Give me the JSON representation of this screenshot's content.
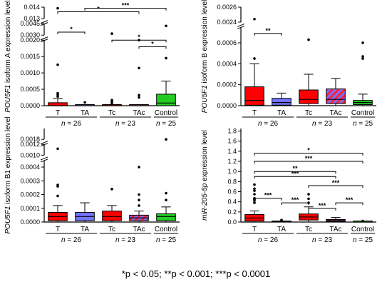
{
  "footnote": "*p < 0.05; **p < 0.001; ***p < 0.0001",
  "colors": {
    "T": "#ff0000",
    "TA": "#7373ff",
    "Tc": "#ff0000",
    "TAc_fill": "#ff1f3a",
    "TAc_stripe": "#7373ff",
    "Control": "#22cc22"
  },
  "chart_data": [
    {
      "type": "box",
      "ylabel_gene": "POU5F1",
      "ylabel_rest": " isoform A expression level",
      "y_segments": [
        {
          "range": [
            0,
            0.002
          ],
          "ticks": [
            "0.0000",
            "0.0005",
            "0.0010",
            "0.0015",
            "0.0020"
          ]
        },
        {
          "range": [
            0.003,
            0.0045
          ],
          "ticks": [
            "0.0030",
            "0.0045"
          ]
        },
        {
          "range": [
            0.013,
            0.014
          ],
          "ticks": [
            "0.013",
            "0.014"
          ]
        }
      ],
      "categories": [
        "T",
        "TA",
        "Tc",
        "TAc",
        "Control"
      ],
      "groups": [
        {
          "label": "n = 26",
          "categories": [
            "T",
            "TA"
          ]
        },
        {
          "label": "n = 23",
          "categories": [
            "Tc",
            "TAc"
          ]
        },
        {
          "label": "n = 25",
          "categories": [
            "Control"
          ]
        }
      ],
      "boxes": [
        {
          "name": "T",
          "whisker_low": 0,
          "q1": 0,
          "median": 0,
          "q3": 9e-05,
          "whisker_high": 0.00022,
          "outliers": [
            0.00028,
            0.00033,
            0.00038,
            0.00125,
            0.0139
          ]
        },
        {
          "name": "TA",
          "whisker_low": 0,
          "q1": 0,
          "median": 0,
          "q3": 0,
          "whisker_high": 0,
          "outliers": [
            0.0001
          ]
        },
        {
          "name": "Tc",
          "whisker_low": 0,
          "q1": 0,
          "median": 0,
          "q3": 0,
          "whisker_high": 0,
          "outliers": [
            8e-05,
            0.00012,
            0.00017,
            0.0032
          ]
        },
        {
          "name": "TAc",
          "whisker_low": 0,
          "q1": 0,
          "median": 0,
          "q3": 0,
          "whisker_high": 0,
          "outliers": [
            0.00025,
            0.00032,
            0.00115,
            0.002
          ]
        },
        {
          "name": "Control",
          "whisker_low": 0,
          "q1": 0,
          "median": 8e-05,
          "q3": 0.00035,
          "whisker_high": 0.00075,
          "outliers": [
            0.00145,
            0.0042
          ]
        }
      ],
      "significance": [
        {
          "from": "T",
          "to": "TA",
          "label": "*",
          "y": 0.0034
        },
        {
          "from": "T",
          "to": "TAc",
          "label": "*",
          "y": 0.0136
        },
        {
          "from": "TA",
          "to": "Control",
          "label": "***",
          "y": 0.0139
        },
        {
          "from": "Tc",
          "to": "Control",
          "label": "*",
          "y": 0.0029
        },
        {
          "from": "TAc",
          "to": "Control",
          "label": "*",
          "y": 0.0018
        }
      ]
    },
    {
      "type": "box",
      "ylabel_gene": "POU5F1",
      "ylabel_rest": " isoform B expression level",
      "y_segments": [
        {
          "range": [
            0,
            0.00075
          ],
          "ticks": [
            "0.0000",
            "0.0002",
            "0.0004",
            "0.0006"
          ]
        },
        {
          "range": [
            0.0024,
            0.0026
          ],
          "ticks": [
            "0.0024",
            "0.0026"
          ]
        }
      ],
      "categories": [
        "T",
        "TA",
        "Tc",
        "TAc",
        "Control"
      ],
      "groups": [
        {
          "label": "n = 26",
          "categories": [
            "T",
            "TA"
          ]
        },
        {
          "label": "n = 23",
          "categories": [
            "Tc",
            "TAc"
          ]
        },
        {
          "label": "n = 25",
          "categories": [
            "Control"
          ]
        }
      ],
      "boxes": [
        {
          "name": "T",
          "whisker_low": 0,
          "q1": 5e-06,
          "median": 5e-05,
          "q3": 0.00018,
          "whisker_high": 0.0004,
          "outliers": [
            0.00045,
            0.00244
          ]
        },
        {
          "name": "TA",
          "whisker_low": 0,
          "q1": 5e-06,
          "median": 3e-05,
          "q3": 7e-05,
          "whisker_high": 0.00012,
          "outliers": []
        },
        {
          "name": "Tc",
          "whisker_low": 0,
          "q1": 2e-05,
          "median": 6e-05,
          "q3": 0.00015,
          "whisker_high": 0.0003,
          "outliers": [
            0.00063
          ]
        },
        {
          "name": "TAc",
          "whisker_low": 0,
          "q1": 2e-05,
          "median": 6e-05,
          "q3": 0.00016,
          "whisker_high": 0.00026,
          "outliers": []
        },
        {
          "name": "Control",
          "whisker_low": 0,
          "q1": 1e-05,
          "median": 3e-05,
          "q3": 5e-05,
          "whisker_high": 0.00011,
          "outliers": [
            0.00045,
            0.00047,
            0.0006
          ]
        }
      ],
      "significance": [
        {
          "from": "T",
          "to": "TA",
          "label": "**",
          "y": 0.00069
        }
      ]
    },
    {
      "type": "box",
      "ylabel_gene": "POU5F1",
      "ylabel_rest": " isoform B1 expression level",
      "y_segments": [
        {
          "range": [
            0,
            0.00045
          ],
          "ticks": [
            "0.0000",
            "0.0001",
            "0.0002",
            "0.0003",
            "0.0004"
          ]
        },
        {
          "range": [
            0.001,
            0.0012
          ],
          "ticks": [
            "0.0010",
            "0.0012"
          ]
        },
        {
          "range": [
            0.0018,
            0.00185
          ],
          "ticks": [
            "0.0018"
          ]
        }
      ],
      "categories": [
        "T",
        "TA",
        "Tc",
        "TAc",
        "Control"
      ],
      "groups": [
        {
          "label": "n = 26",
          "categories": [
            "T",
            "TA"
          ]
        },
        {
          "label": "n = 23",
          "categories": [
            "Tc",
            "TAc"
          ]
        },
        {
          "label": "n = 25",
          "categories": [
            "Control"
          ]
        }
      ],
      "boxes": [
        {
          "name": "T",
          "whisker_low": 0,
          "q1": 1e-05,
          "median": 4e-05,
          "q3": 7e-05,
          "whisker_high": 0.00012,
          "outliers": [
            0.00019,
            0.00026,
            0.00027,
            0.00112
          ]
        },
        {
          "name": "TA",
          "whisker_low": 0,
          "q1": 1e-05,
          "median": 4e-05,
          "q3": 7e-05,
          "whisker_high": 0.00014,
          "outliers": []
        },
        {
          "name": "Tc",
          "whisker_low": 0,
          "q1": 1e-05,
          "median": 4e-05,
          "q3": 8e-05,
          "whisker_high": 0.00012,
          "outliers": [
            0.00024
          ]
        },
        {
          "name": "TAc",
          "whisker_low": 0,
          "q1": 1e-05,
          "median": 3e-05,
          "q3": 5e-05,
          "whisker_high": 8e-05,
          "outliers": [
            0.00012,
            0.00016,
            0.0002,
            0.0004
          ]
        },
        {
          "name": "Control",
          "whisker_low": 0,
          "q1": 1e-05,
          "median": 4e-05,
          "q3": 6e-05,
          "whisker_high": 0.00011,
          "outliers": [
            0.00016,
            0.00021,
            0.0018
          ]
        }
      ],
      "significance": []
    },
    {
      "type": "box",
      "ylabel_gene": "miR-205-5p",
      "ylabel_rest": " expression level",
      "y_segments": [
        {
          "range": [
            0,
            1.85
          ],
          "ticks": [
            "0.0",
            "0.2",
            "0.4",
            "0.6",
            "0.8",
            "1.0",
            "1.2",
            "1.4",
            "1.6",
            "1.8"
          ]
        }
      ],
      "categories": [
        "T",
        "TA",
        "Tc",
        "TAc",
        "Control"
      ],
      "groups": [
        {
          "label": "n = 26",
          "categories": [
            "T",
            "TA"
          ]
        },
        {
          "label": "n = 23",
          "categories": [
            "Tc",
            "TAc"
          ]
        },
        {
          "label": "n = 25",
          "categories": [
            "Control"
          ]
        }
      ],
      "boxes": [
        {
          "name": "T",
          "whisker_low": 0,
          "q1": 0.02,
          "median": 0.08,
          "q3": 0.15,
          "whisker_high": 0.22,
          "outliers": [
            0.38,
            0.42,
            0.45,
            0.47,
            0.55,
            0.62,
            0.66,
            0.74
          ]
        },
        {
          "name": "TA",
          "whisker_low": 0,
          "q1": 0,
          "median": 0.005,
          "q3": 0.01,
          "whisker_high": 0.02,
          "outliers": [
            0.03,
            0.04
          ]
        },
        {
          "name": "Tc",
          "whisker_low": 0,
          "q1": 0.04,
          "median": 0.1,
          "q3": 0.16,
          "whisker_high": 0.3,
          "outliers": [
            0.38,
            0.46,
            0.55
          ]
        },
        {
          "name": "TAc",
          "whisker_low": 0,
          "q1": 0.01,
          "median": 0.03,
          "q3": 0.05,
          "whisker_high": 0.09,
          "outliers": []
        },
        {
          "name": "Control",
          "whisker_low": 0,
          "q1": 0,
          "median": 0,
          "q3": 0.005,
          "whisker_high": 0.01,
          "outliers": [
            0.02
          ]
        }
      ],
      "significance": [
        {
          "from": "T",
          "to": "Control",
          "label": "*",
          "y": 1.36
        },
        {
          "from": "T",
          "to": "Control",
          "label": "***",
          "y": 1.2
        },
        {
          "from": "T",
          "to": "TAc",
          "label": "**",
          "y": 1.0
        },
        {
          "from": "T",
          "to": "TAc",
          "label": "***",
          "y": 0.9
        },
        {
          "from": "T",
          "to": "TA",
          "label": "***",
          "y": 0.47
        },
        {
          "from": "TA",
          "to": "Tc",
          "label": "***",
          "y": 0.38
        },
        {
          "from": "Tc",
          "to": "Control",
          "label": "***",
          "y": 0.72
        },
        {
          "from": "Tc",
          "to": "TAc",
          "label": "***",
          "y": 0.27
        },
        {
          "from": "TAc",
          "to": "Control",
          "label": "***",
          "y": 0.38
        }
      ]
    }
  ]
}
